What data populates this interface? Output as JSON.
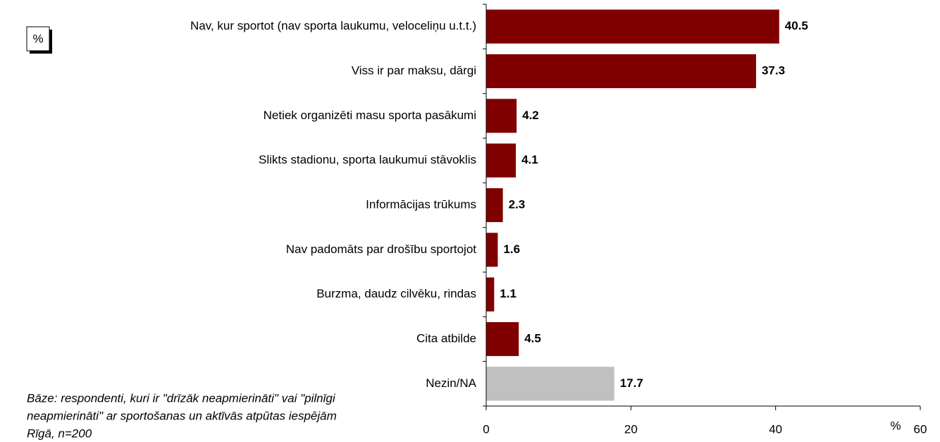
{
  "chart_data": {
    "type": "bar",
    "orientation": "horizontal",
    "unit_box": "%",
    "xlabel": "%",
    "categories": [
      "Nav, kur sportot (nav sporta laukumu, veloceliņu u.t.t.)",
      "Viss ir par maksu, dārgi",
      "Netiek organizēti masu sporta pasākumi",
      "Slikts stadionu, sporta laukumui stāvoklis",
      "Informācijas trūkums",
      "Nav padomāts par drošību sportojot",
      "Burzma, daudz cilvēku, rindas",
      "Cita atbilde",
      "Nezin/NA"
    ],
    "values": [
      40.5,
      37.3,
      4.2,
      4.1,
      2.3,
      1.6,
      1.1,
      4.5,
      17.7
    ],
    "colors": [
      "#800000",
      "#800000",
      "#800000",
      "#800000",
      "#800000",
      "#800000",
      "#800000",
      "#800000",
      "#c0c0c0"
    ],
    "xlim": [
      0,
      60
    ],
    "xticks": [
      0,
      20,
      40,
      60
    ],
    "note": [
      "Bāze: respondenti, kuri ir \"drīzāk neapmierināti\" vai \"pilnīgi",
      "neapmierināti\" ar sportošanas un aktīvās atpūtas iespējām",
      "Rīgā, n=200"
    ]
  }
}
